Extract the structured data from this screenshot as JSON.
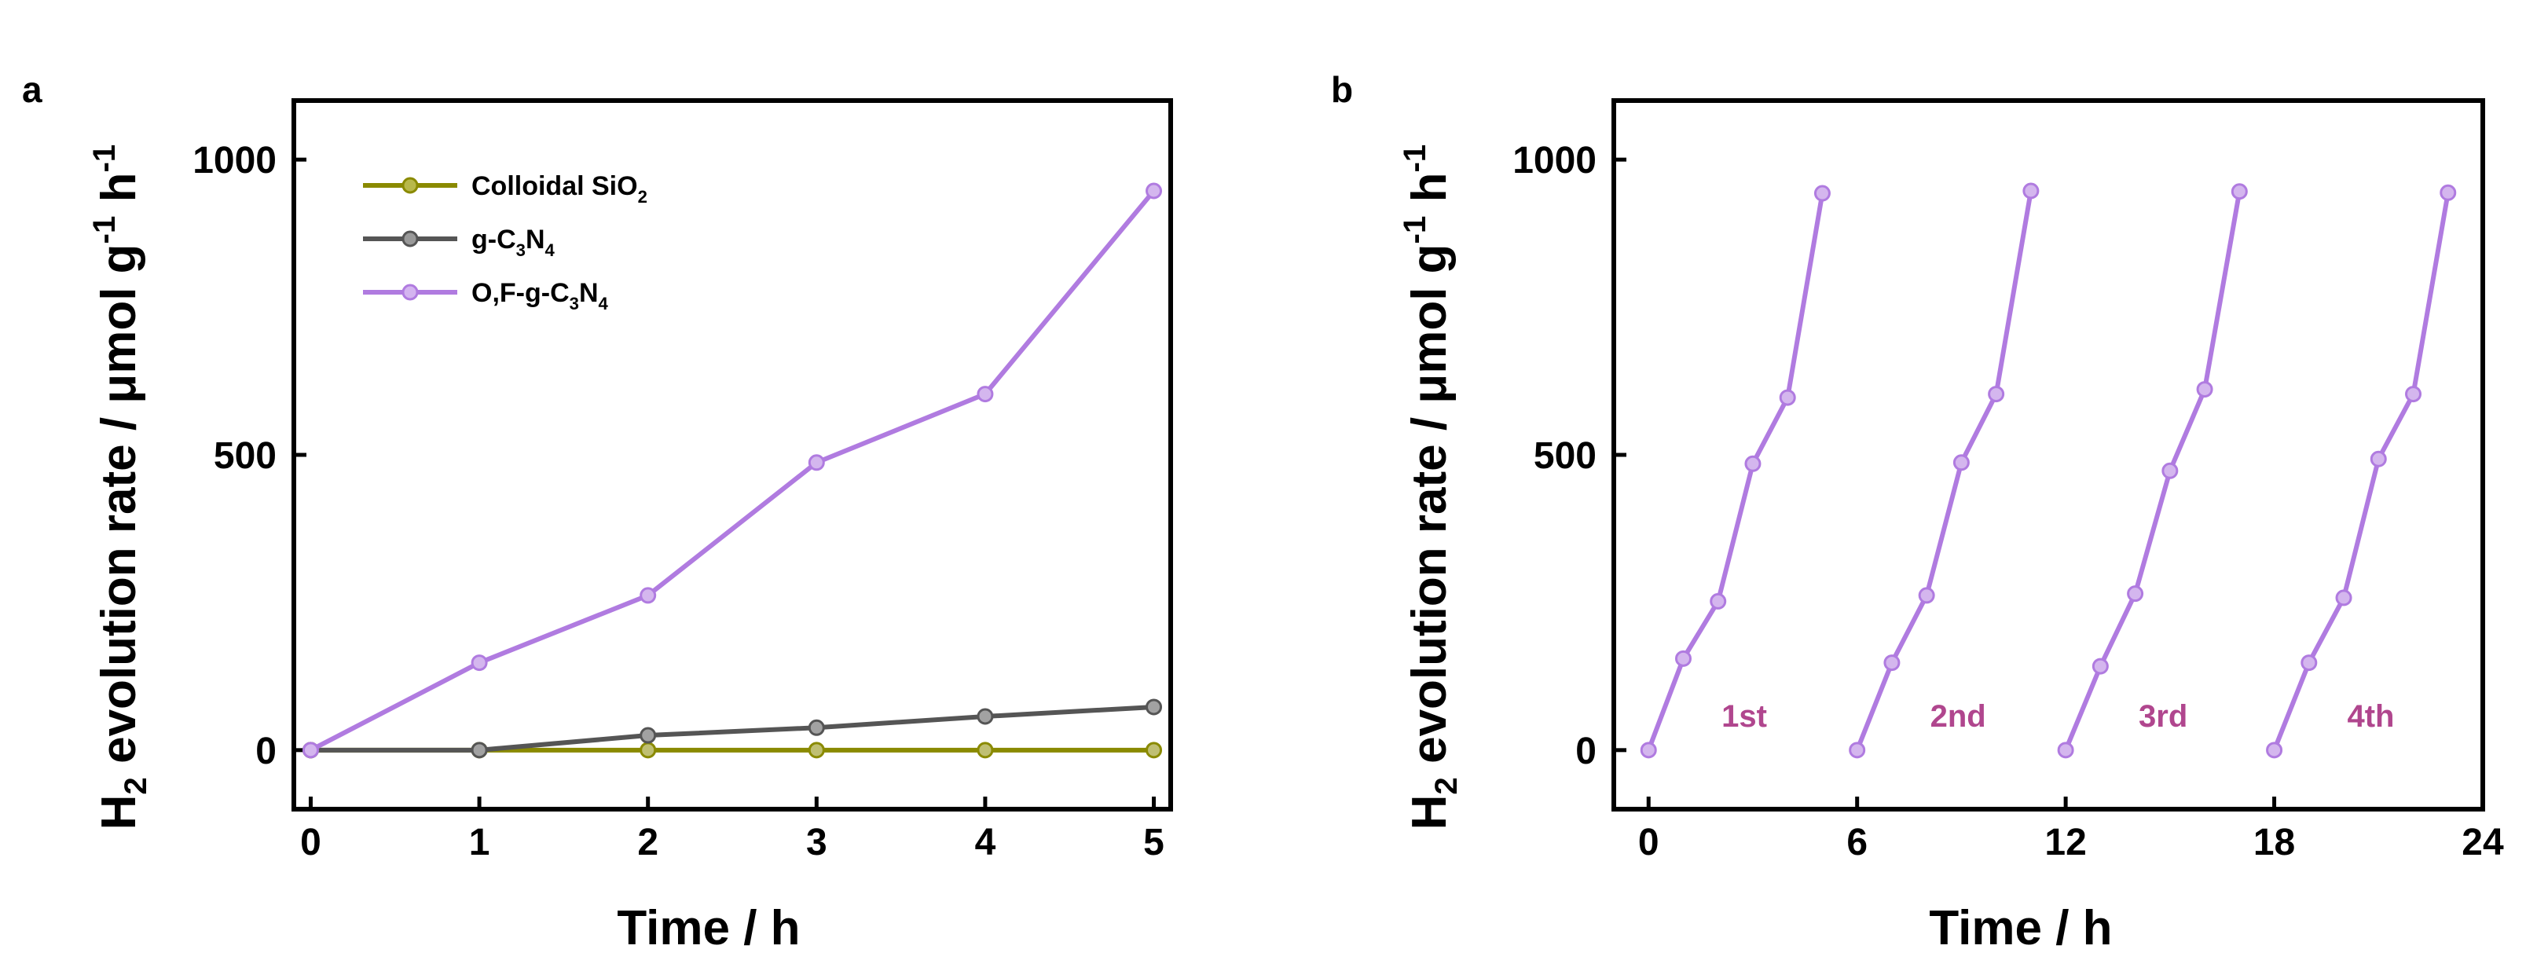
{
  "chart_data": [
    {
      "panel": "a",
      "type": "line",
      "xlabel": "Time / h",
      "ylabel": {
        "main": "evolution rate / μmol g",
        "h2_base": "H",
        "h2_sub": "2",
        "sup1": "-1",
        "h": " h",
        "sup2": "-1"
      },
      "xlim": [
        -0.1,
        5.1
      ],
      "ylim": [
        -100,
        1100
      ],
      "xticks": [
        "0",
        "1",
        "2",
        "3",
        "4",
        "5"
      ],
      "yticks": [
        "0",
        "500",
        "1000"
      ],
      "x": [
        0,
        1,
        2,
        3,
        4,
        5
      ],
      "series": [
        {
          "name": "Colloidal SiO2",
          "label_main": "Colloidal SiO",
          "label_sub": "2",
          "label_tail": "",
          "color": "#8a8a00",
          "values": [
            0,
            0,
            0,
            0,
            0,
            0
          ]
        },
        {
          "name": "g-C3N4",
          "label_main": "g-C",
          "label_sub": "3",
          "label_mid": "N",
          "label_sub2": "4",
          "color": "#555555",
          "values": [
            0,
            0,
            25,
            38,
            57,
            73
          ]
        },
        {
          "name": "O,F-g-C3N4",
          "label_main": "O,F-g-C",
          "label_sub": "3",
          "label_mid": "N",
          "label_sub2": "4",
          "color": "#b07be0",
          "values": [
            0,
            148,
            262,
            487,
            603,
            947
          ]
        }
      ]
    },
    {
      "panel": "b",
      "type": "line",
      "xlabel": "Time / h",
      "ylabel": {
        "main": "evolution rate / μmol g",
        "h2_base": "H",
        "h2_sub": "2",
        "sup1": "-1",
        "h": " h",
        "sup2": "-1"
      },
      "xlim": [
        -1,
        24
      ],
      "ylim": [
        -100,
        1100
      ],
      "xticks": [
        "0",
        "6",
        "12",
        "18",
        "24"
      ],
      "yticks": [
        "0",
        "500",
        "1000"
      ],
      "color": "#b07be0",
      "label_color": "#b0468e",
      "cycles": [
        {
          "label": "1st",
          "x": [
            0,
            1,
            2,
            3,
            4,
            5
          ],
          "values": [
            0,
            155,
            252,
            485,
            597,
            943
          ]
        },
        {
          "label": "2nd",
          "x": [
            6,
            7,
            8,
            9,
            10,
            11
          ],
          "values": [
            0,
            148,
            262,
            487,
            603,
            947
          ]
        },
        {
          "label": "3rd",
          "x": [
            12,
            13,
            14,
            15,
            16,
            17
          ],
          "values": [
            0,
            142,
            265,
            473,
            611,
            946
          ]
        },
        {
          "label": "4th",
          "x": [
            18,
            19,
            20,
            21,
            22,
            23
          ],
          "values": [
            0,
            148,
            258,
            493,
            603,
            944
          ]
        }
      ]
    }
  ]
}
